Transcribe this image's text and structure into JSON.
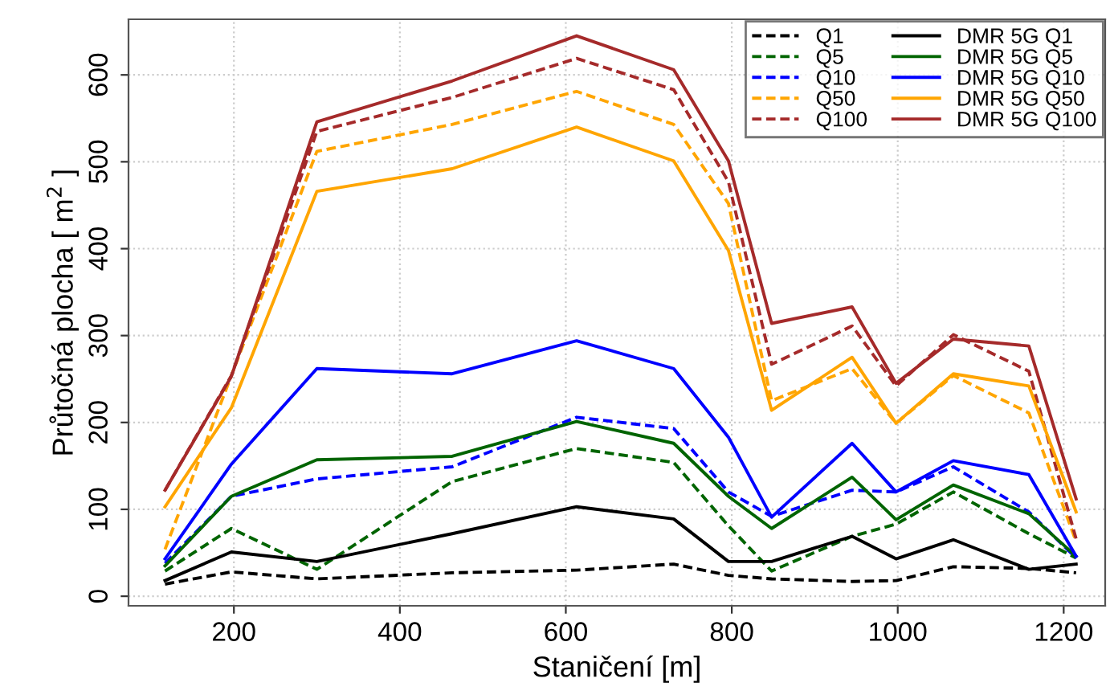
{
  "chart_data": {
    "type": "line",
    "xlabel": "Staničení [m]",
    "ylabel": "Průtočná plocha [ m$^{2}$ ]",
    "x": [
      117,
      197,
      300,
      463,
      613,
      730,
      796,
      848,
      945,
      998,
      1067,
      1158,
      1215
    ],
    "xlim": [
      73,
      1250
    ],
    "ylim": [
      -11,
      664
    ],
    "xticks": [
      200,
      400,
      600,
      800,
      1000,
      1200
    ],
    "yticks": [
      0,
      100,
      200,
      300,
      400,
      500,
      600
    ],
    "grid": true,
    "legend": "top right",
    "marker": "none",
    "series": [
      {
        "name": "Q1",
        "color": "#000000",
        "line_style": "dashed",
        "values": [
          14,
          28,
          20,
          27,
          30,
          37,
          24,
          20,
          17,
          18,
          34,
          32,
          27
        ]
      },
      {
        "name": "Q5",
        "color": "#006400",
        "line_style": "dashed",
        "values": [
          29,
          78,
          31,
          132,
          170,
          154,
          81,
          29,
          69,
          83,
          120,
          72,
          44
        ]
      },
      {
        "name": "Q10",
        "color": "#0000ff",
        "line_style": "dashed",
        "values": [
          38,
          115,
          135,
          149,
          206,
          193,
          120,
          92,
          122,
          120,
          149,
          97,
          44
        ]
      },
      {
        "name": "Q50",
        "color": "#ffa500",
        "line_style": "dashed",
        "values": [
          54,
          254,
          512,
          543,
          581,
          543,
          452,
          225,
          262,
          199,
          254,
          211,
          63
        ]
      },
      {
        "name": "Q100",
        "color": "#a52a2a",
        "line_style": "dashed",
        "values": [
          122,
          254,
          535,
          574,
          619,
          583,
          477,
          267,
          311,
          242,
          301,
          259,
          66
        ]
      },
      {
        "name": "DMR 5G Q1",
        "color": "#000000",
        "line_style": "solid",
        "values": [
          18,
          51,
          40,
          72,
          103,
          89,
          40,
          40,
          69,
          43,
          65,
          31,
          37
        ]
      },
      {
        "name": "DMR 5G Q5",
        "color": "#006400",
        "line_style": "solid",
        "values": [
          35,
          115,
          157,
          161,
          201,
          176,
          115,
          78,
          137,
          88,
          128,
          95,
          46
        ]
      },
      {
        "name": "DMR 5G Q10",
        "color": "#0000ff",
        "line_style": "solid",
        "values": [
          43,
          152,
          262,
          256,
          294,
          262,
          183,
          91,
          176,
          120,
          156,
          140,
          46
        ]
      },
      {
        "name": "DMR 5G Q50",
        "color": "#ffa500",
        "line_style": "solid",
        "values": [
          103,
          217,
          466,
          492,
          540,
          501,
          398,
          214,
          275,
          199,
          256,
          242,
          97
        ]
      },
      {
        "name": "DMR 5G Q100",
        "color": "#a52a2a",
        "line_style": "solid",
        "values": [
          122,
          253,
          546,
          593,
          645,
          606,
          501,
          314,
          333,
          245,
          296,
          288,
          112
        ]
      }
    ]
  }
}
